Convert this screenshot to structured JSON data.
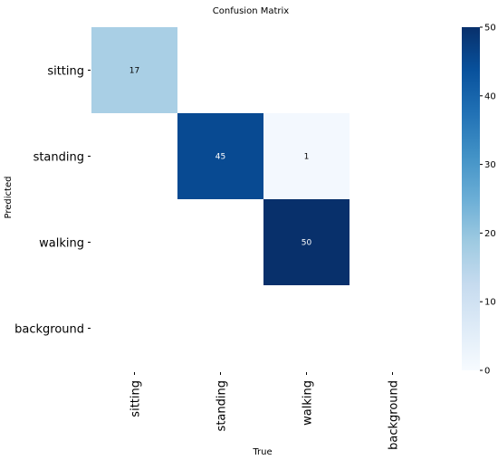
{
  "chart_data": {
    "type": "heatmap",
    "title": "Confusion Matrix",
    "xlabel": "True",
    "ylabel": "Predicted",
    "x_categories": [
      "sitting",
      "standing",
      "walking",
      "background"
    ],
    "y_categories": [
      "sitting",
      "standing",
      "walking",
      "background"
    ],
    "values": [
      [
        17,
        null,
        null,
        null
      ],
      [
        null,
        45,
        1,
        null
      ],
      [
        null,
        null,
        50,
        null
      ],
      [
        null,
        null,
        null,
        null
      ]
    ],
    "colorbar": {
      "range": [
        0,
        50
      ],
      "ticks": [
        "0",
        "10",
        "20",
        "30",
        "40",
        "50"
      ]
    },
    "colormap": "Blues",
    "colors": {
      "low": "#f7fbff",
      "high": "#08306b"
    }
  }
}
